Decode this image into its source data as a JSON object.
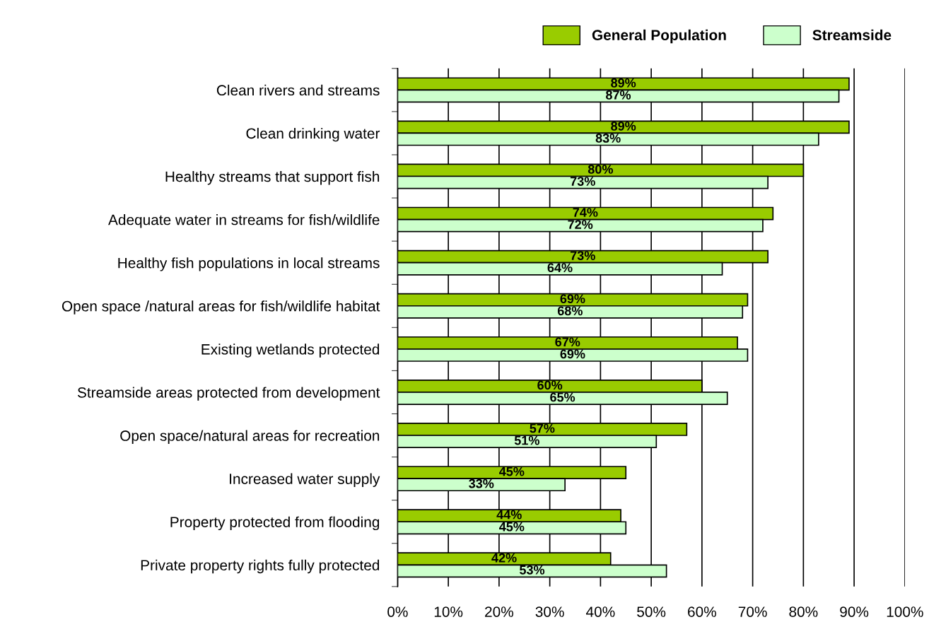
{
  "chart_data": {
    "type": "bar",
    "orientation": "horizontal",
    "categories": [
      "Clean rivers and streams",
      "Clean drinking water",
      "Healthy streams that support fish",
      "Adequate water in streams for fish/wildlife",
      "Healthy fish populations in local streams",
      "Open space /natural areas for fish/wildlife habitat",
      "Existing wetlands protected",
      "Streamside areas protected from development",
      "Open space/natural areas for recreation",
      "Increased water supply",
      "Property protected from flooding",
      "Private property rights fully protected"
    ],
    "series": [
      {
        "name": "General Population",
        "color": "#99cc00",
        "values": [
          89,
          89,
          80,
          74,
          73,
          69,
          67,
          60,
          57,
          45,
          44,
          42
        ],
        "value_labels": [
          "89%",
          "89%",
          "80%",
          "74%",
          "73%",
          "69%",
          "67%",
          "60%",
          "57%",
          "45%",
          "44%",
          "42%"
        ]
      },
      {
        "name": "Streamside",
        "color": "#ccffcc",
        "values": [
          87,
          83,
          73,
          72,
          64,
          68,
          69,
          65,
          51,
          33,
          45,
          53
        ],
        "value_labels": [
          "87%",
          "83%",
          "73%",
          "72%",
          "64%",
          "68%",
          "69%",
          "65%",
          "51%",
          "33%",
          "45%",
          "53%"
        ]
      }
    ],
    "xlim": [
      0,
      100
    ],
    "xticks": [
      {
        "value": 0,
        "label": "0%"
      },
      {
        "value": 10,
        "label": "10%"
      },
      {
        "value": 20,
        "label": "20%"
      },
      {
        "value": 30,
        "label": "30%"
      },
      {
        "value": 40,
        "label": "40%"
      },
      {
        "value": 50,
        "label": "50%"
      },
      {
        "value": 60,
        "label": "60%"
      },
      {
        "value": 70,
        "label": "70%"
      },
      {
        "value": 80,
        "label": "80%"
      },
      {
        "value": 90,
        "label": "90%"
      },
      {
        "value": 100,
        "label": "100%"
      }
    ],
    "grid": "x",
    "legend": "top right"
  }
}
